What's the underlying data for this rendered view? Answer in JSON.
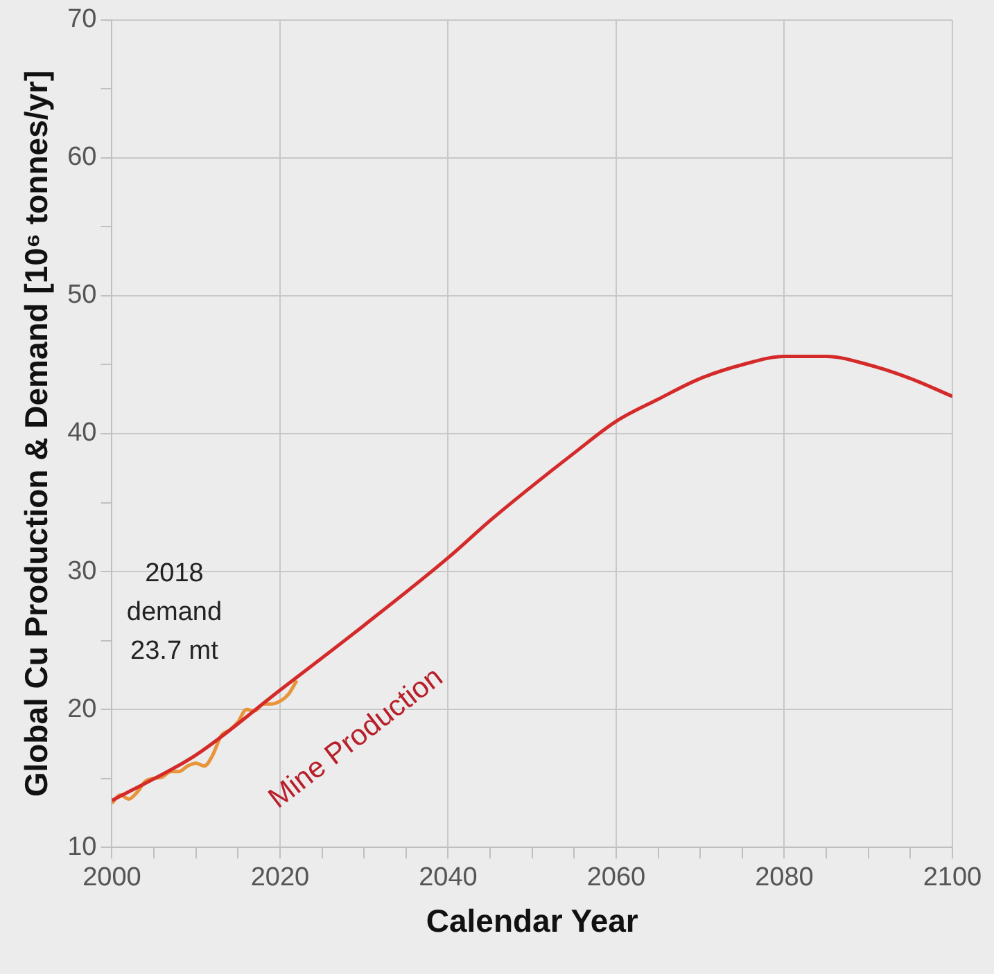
{
  "chart_data": {
    "type": "line",
    "xlabel": "Calendar Year",
    "ylabel": "Global Cu Production & Demand [10⁶ tonnes/yr]",
    "xlim": [
      2000,
      2100
    ],
    "ylim": [
      10,
      70
    ],
    "xticks": [
      2000,
      {
        "value": 2005,
        "label": null
      },
      {
        "value": 2010,
        "label": null
      },
      {
        "value": 2015,
        "label": null
      },
      2020,
      {
        "value": 2025,
        "label": null
      },
      {
        "value": 2030,
        "label": null
      },
      {
        "value": 2035,
        "label": null
      },
      2040,
      {
        "value": 2045,
        "label": null
      },
      {
        "value": 2050,
        "label": null
      },
      {
        "value": 2055,
        "label": null
      },
      2060,
      {
        "value": 2065,
        "label": null
      },
      {
        "value": 2070,
        "label": null
      },
      {
        "value": 2075,
        "label": null
      },
      2080,
      {
        "value": 2085,
        "label": null
      },
      {
        "value": 2090,
        "label": null
      },
      {
        "value": 2095,
        "label": null
      },
      2100
    ],
    "yticks": [
      10,
      {
        "value": 15,
        "label": null
      },
      20,
      {
        "value": 25,
        "label": null
      },
      30,
      {
        "value": 35,
        "label": null
      },
      40,
      {
        "value": 45,
        "label": null
      },
      50,
      {
        "value": 55,
        "label": null
      },
      60,
      {
        "value": 65,
        "label": null
      },
      70
    ],
    "grid": true,
    "legend": false,
    "marker": "none",
    "line_style": "solid",
    "annotations": [
      "2018\ndemand\n23.7 mt"
    ],
    "series": [
      {
        "name": "Mine Production",
        "color": "#d42a2a",
        "x": [
          2000,
          2010,
          2020,
          2030,
          2040,
          2045,
          2050,
          2055,
          2060,
          2065,
          2070,
          2075,
          2080,
          2085,
          2090,
          2095,
          2100
        ],
        "values": [
          13.4,
          16.7,
          21.4,
          26.1,
          31.0,
          33.7,
          36.2,
          38.6,
          40.9,
          42.5,
          44.0,
          45.0,
          45.6,
          45.6,
          45.0,
          44.0,
          42.7
        ]
      },
      {
        "color": "#e8943a",
        "x": [
          2000,
          2001,
          2002,
          2003,
          2004,
          2005,
          2006,
          2007,
          2008,
          2009,
          2010,
          2011,
          2012,
          2013,
          2014,
          2015,
          2016,
          2017,
          2018,
          2019,
          2020,
          2021,
          2022
        ],
        "values": [
          13.2,
          13.8,
          13.5,
          14.0,
          14.8,
          15.0,
          15.1,
          15.5,
          15.5,
          15.9,
          16.1,
          15.9,
          16.7,
          18.1,
          18.5,
          19.1,
          20.0,
          19.9,
          20.4,
          20.4,
          20.6,
          21.1,
          22.1
        ]
      }
    ]
  }
}
